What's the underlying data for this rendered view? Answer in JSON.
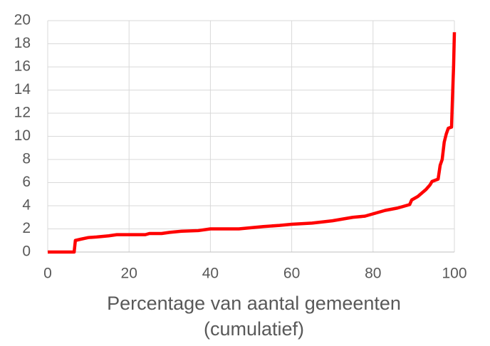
{
  "chart_data": {
    "type": "line",
    "xlabel": [
      "Percentage van aantal gemeenten",
      "(cumulatief)"
    ],
    "x": [
      0,
      6.5,
      6.8,
      8,
      10,
      12,
      15,
      17,
      24,
      25,
      28,
      30,
      33,
      37,
      40,
      47,
      50,
      53,
      57,
      60,
      65,
      70,
      75,
      78,
      80,
      83,
      86,
      88,
      89,
      89.5,
      91,
      92,
      93,
      94,
      94.5,
      96,
      96.5,
      97,
      97.5,
      98,
      98.5,
      99.3,
      99.5,
      99.8,
      100
    ],
    "series": [
      {
        "color": "#ff0000",
        "values": [
          0,
          0,
          1.0,
          1.1,
          1.25,
          1.3,
          1.4,
          1.5,
          1.5,
          1.6,
          1.6,
          1.7,
          1.8,
          1.85,
          2.0,
          2.0,
          2.1,
          2.2,
          2.3,
          2.4,
          2.5,
          2.7,
          3.0,
          3.1,
          3.3,
          3.6,
          3.8,
          4.0,
          4.1,
          4.5,
          4.8,
          5.1,
          5.4,
          5.8,
          6.1,
          6.3,
          7.5,
          8.0,
          9.5,
          10.2,
          10.7,
          10.8,
          13,
          16,
          19
        ]
      }
    ],
    "xlim": [
      0,
      100
    ],
    "xticks": [
      0,
      20,
      40,
      60,
      80,
      100
    ],
    "ylim": [
      0,
      20
    ],
    "yticks": [
      0,
      2,
      4,
      6,
      8,
      10,
      12,
      14,
      16,
      18,
      20
    ],
    "grid": true
  }
}
